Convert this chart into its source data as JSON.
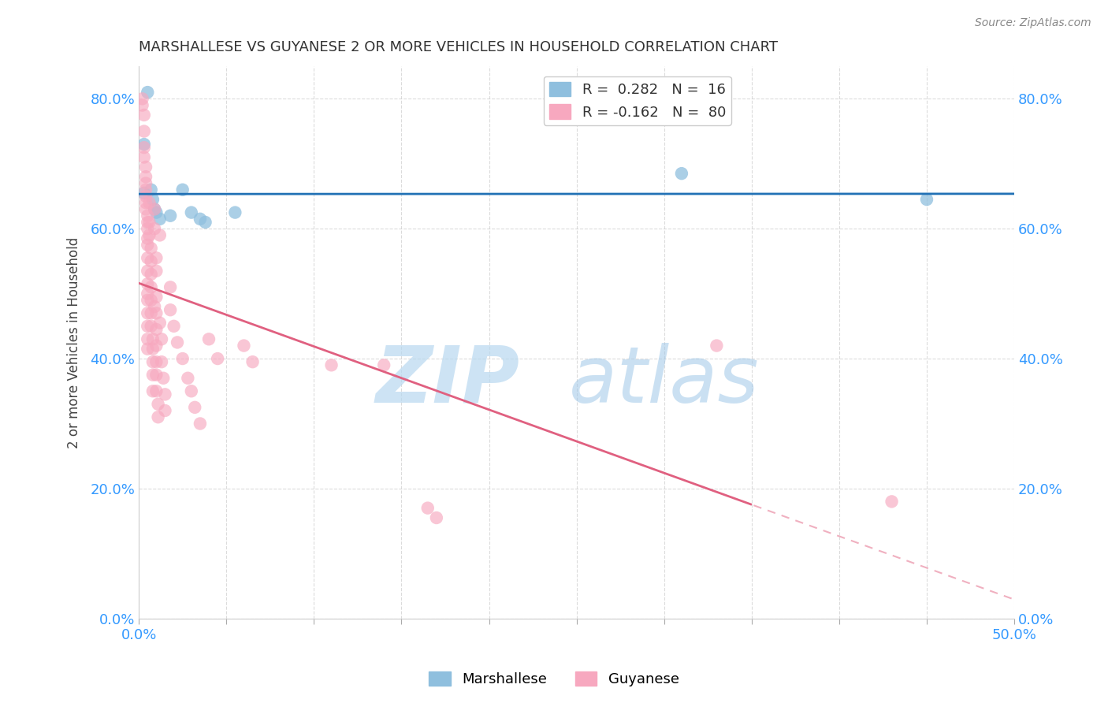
{
  "title": "MARSHALLESE VS GUYANESE 2 OR MORE VEHICLES IN HOUSEHOLD CORRELATION CHART",
  "source": "Source: ZipAtlas.com",
  "ylabel": "2 or more Vehicles in Household",
  "watermark_zip": "ZIP",
  "watermark_atlas": "atlas",
  "xlim": [
    0.0,
    0.5
  ],
  "ylim": [
    0.0,
    0.85
  ],
  "x_ticks": [
    0.0,
    0.05,
    0.1,
    0.15,
    0.2,
    0.25,
    0.3,
    0.35,
    0.4,
    0.45,
    0.5
  ],
  "x_tick_labels_show": [
    0.0,
    0.5
  ],
  "y_ticks": [
    0.0,
    0.2,
    0.4,
    0.6,
    0.8
  ],
  "marshallese_points": [
    [
      0.003,
      0.73
    ],
    [
      0.003,
      0.655
    ],
    [
      0.005,
      0.81
    ],
    [
      0.007,
      0.66
    ],
    [
      0.008,
      0.645
    ],
    [
      0.009,
      0.63
    ],
    [
      0.01,
      0.625
    ],
    [
      0.012,
      0.615
    ],
    [
      0.018,
      0.62
    ],
    [
      0.025,
      0.66
    ],
    [
      0.03,
      0.625
    ],
    [
      0.035,
      0.615
    ],
    [
      0.038,
      0.61
    ],
    [
      0.055,
      0.625
    ],
    [
      0.31,
      0.685
    ],
    [
      0.45,
      0.645
    ]
  ],
  "guyanese_points": [
    [
      0.002,
      0.8
    ],
    [
      0.002,
      0.79
    ],
    [
      0.003,
      0.775
    ],
    [
      0.003,
      0.75
    ],
    [
      0.003,
      0.725
    ],
    [
      0.003,
      0.71
    ],
    [
      0.004,
      0.695
    ],
    [
      0.004,
      0.68
    ],
    [
      0.004,
      0.67
    ],
    [
      0.004,
      0.66
    ],
    [
      0.004,
      0.65
    ],
    [
      0.004,
      0.64
    ],
    [
      0.004,
      0.63
    ],
    [
      0.005,
      0.62
    ],
    [
      0.005,
      0.61
    ],
    [
      0.005,
      0.6
    ],
    [
      0.005,
      0.585
    ],
    [
      0.005,
      0.575
    ],
    [
      0.005,
      0.555
    ],
    [
      0.005,
      0.535
    ],
    [
      0.005,
      0.515
    ],
    [
      0.005,
      0.5
    ],
    [
      0.005,
      0.49
    ],
    [
      0.005,
      0.47
    ],
    [
      0.005,
      0.45
    ],
    [
      0.005,
      0.43
    ],
    [
      0.005,
      0.415
    ],
    [
      0.006,
      0.64
    ],
    [
      0.006,
      0.61
    ],
    [
      0.006,
      0.59
    ],
    [
      0.007,
      0.57
    ],
    [
      0.007,
      0.55
    ],
    [
      0.007,
      0.53
    ],
    [
      0.007,
      0.51
    ],
    [
      0.007,
      0.49
    ],
    [
      0.007,
      0.47
    ],
    [
      0.007,
      0.45
    ],
    [
      0.008,
      0.43
    ],
    [
      0.008,
      0.415
    ],
    [
      0.008,
      0.395
    ],
    [
      0.008,
      0.375
    ],
    [
      0.008,
      0.35
    ],
    [
      0.009,
      0.63
    ],
    [
      0.009,
      0.6
    ],
    [
      0.009,
      0.48
    ],
    [
      0.01,
      0.555
    ],
    [
      0.01,
      0.535
    ],
    [
      0.01,
      0.495
    ],
    [
      0.01,
      0.47
    ],
    [
      0.01,
      0.445
    ],
    [
      0.01,
      0.42
    ],
    [
      0.01,
      0.395
    ],
    [
      0.01,
      0.375
    ],
    [
      0.01,
      0.35
    ],
    [
      0.011,
      0.33
    ],
    [
      0.011,
      0.31
    ],
    [
      0.012,
      0.59
    ],
    [
      0.012,
      0.455
    ],
    [
      0.013,
      0.43
    ],
    [
      0.013,
      0.395
    ],
    [
      0.014,
      0.37
    ],
    [
      0.015,
      0.345
    ],
    [
      0.015,
      0.32
    ],
    [
      0.018,
      0.51
    ],
    [
      0.018,
      0.475
    ],
    [
      0.02,
      0.45
    ],
    [
      0.022,
      0.425
    ],
    [
      0.025,
      0.4
    ],
    [
      0.028,
      0.37
    ],
    [
      0.03,
      0.35
    ],
    [
      0.032,
      0.325
    ],
    [
      0.035,
      0.3
    ],
    [
      0.04,
      0.43
    ],
    [
      0.045,
      0.4
    ],
    [
      0.06,
      0.42
    ],
    [
      0.065,
      0.395
    ],
    [
      0.11,
      0.39
    ],
    [
      0.14,
      0.39
    ],
    [
      0.165,
      0.17
    ],
    [
      0.17,
      0.155
    ],
    [
      0.33,
      0.42
    ],
    [
      0.43,
      0.18
    ]
  ],
  "marshallese_color": "#8fbfde",
  "guyanese_color": "#f7a8bf",
  "marshallese_line_color": "#2171b5",
  "guyanese_line_solid_color": "#e06080",
  "guyanese_line_dashed_color": "#f0b0c0",
  "background_color": "#ffffff",
  "grid_color": "#cccccc"
}
